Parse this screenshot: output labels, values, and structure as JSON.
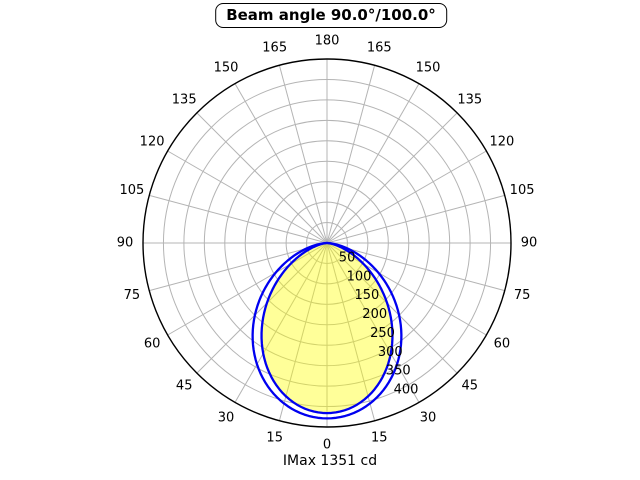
{
  "title": "Beam angle 90.0°/100.0°",
  "footer": "IMax 1351 cd",
  "chart_data": {
    "type": "line",
    "subtype": "polar-photometric",
    "title": "Beam angle 90.0°/100.0°",
    "imax_label": "IMax 1351 cd",
    "imax_cd": 1351,
    "beam_angles_deg": [
      90.0,
      100.0
    ],
    "orientation": "0-degrees-at-bottom, angles mirrored on both sides up to 180 at top",
    "angle_tick_step_deg": 15,
    "angle_tick_labels": [
      0,
      15,
      30,
      45,
      60,
      75,
      90,
      105,
      120,
      135,
      150,
      165,
      180
    ],
    "r_ticks": [
      50,
      100,
      150,
      200,
      250,
      300,
      350,
      400
    ],
    "r_max": 450,
    "r_label_angle_deg": 22.5,
    "grid": true,
    "series": [
      {
        "name": "beam-90deg-plane",
        "beam_angle_deg": 90.0,
        "model": "r = r0 * cos(theta)^exponent",
        "r0": 416,
        "exponent": 2.0,
        "filled": true,
        "angles_deg": [
          -90,
          -80,
          -70,
          -60,
          -50,
          -40,
          -30,
          -20,
          -10,
          0,
          10,
          20,
          30,
          40,
          50,
          60,
          70,
          80,
          90
        ],
        "r": [
          0,
          12.5,
          48.7,
          104,
          171.9,
          244.1,
          312,
          367.3,
          403.4,
          416,
          403.4,
          367.3,
          312,
          244.1,
          171.9,
          104,
          48.7,
          12.5,
          0
        ]
      },
      {
        "name": "beam-100deg-plane",
        "beam_angle_deg": 100.0,
        "model": "r = r0 * cos(theta)^exponent",
        "r0": 429,
        "exponent": 1.566,
        "filled": false,
        "angles_deg": [
          -90,
          -80,
          -70,
          -60,
          -50,
          -40,
          -30,
          -20,
          -10,
          0,
          10,
          20,
          30,
          40,
          50,
          60,
          70,
          80,
          90
        ],
        "r": [
          0,
          27.7,
          79.9,
          144.9,
          214.7,
          282.6,
          342.5,
          389.2,
          418.8,
          429,
          418.8,
          389.2,
          342.5,
          282.6,
          214.7,
          144.9,
          79.9,
          27.7,
          0
        ]
      }
    ],
    "colors": {
      "curve": "#0000f0",
      "fill": "rgba(255,255,0,0.40)",
      "grid": "#b4b4b4",
      "outline": "#000000",
      "background": "#ffffff",
      "text": "#000000"
    }
  }
}
